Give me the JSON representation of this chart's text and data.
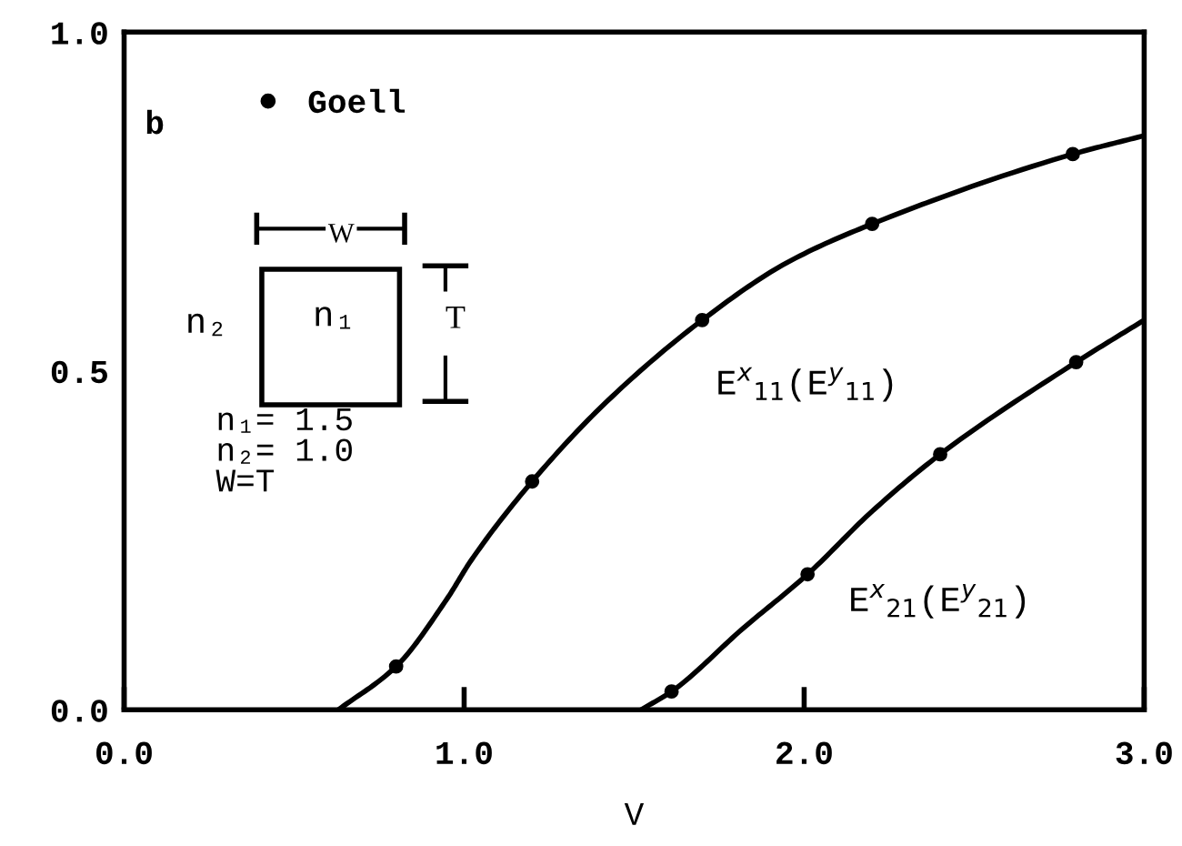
{
  "chart_data": {
    "type": "line",
    "xlabel": "V",
    "ylabel": "b",
    "xlim": [
      0,
      3.0
    ],
    "ylim": [
      0,
      1.0
    ],
    "xticks": [
      {
        "value": 0,
        "label": "0.0"
      },
      {
        "value": 1,
        "label": "1.0"
      },
      {
        "value": 2,
        "label": "2.0"
      },
      {
        "value": 3,
        "label": "3.0"
      }
    ],
    "yticks": [
      {
        "value": 0,
        "label": "0.0"
      },
      {
        "value": 0.5,
        "label": "0.5"
      },
      {
        "value": 1,
        "label": "1.0"
      }
    ],
    "series": [
      {
        "color": "#000000",
        "x": [
          0.63,
          0.8,
          0.95,
          1.02,
          1.2,
          1.42,
          1.7,
          1.95,
          2.2,
          2.79,
          2.99
        ],
        "values": [
          0,
          0.064,
          0.164,
          0.22,
          0.337,
          0.455,
          0.575,
          0.66,
          0.717,
          0.82,
          0.846
        ]
      },
      {
        "color": "#000000",
        "x": [
          1.52,
          1.61,
          1.82,
          2.01,
          2.2,
          2.4,
          2.8,
          2.99
        ],
        "values": [
          0,
          0.027,
          0.12,
          0.2,
          0.293,
          0.377,
          0.513,
          0.572
        ]
      },
      {
        "type": "scatter",
        "name": "Goell",
        "color": "#000000",
        "marker": "circle",
        "x": [
          0.8,
          1.2,
          1.7,
          2.2,
          2.79,
          1.61,
          2.01,
          2.4,
          2.8
        ],
        "values": [
          0.064,
          0.337,
          0.575,
          0.717,
          0.82,
          0.027,
          0.2,
          0.377,
          0.513
        ]
      }
    ],
    "legend": "top left",
    "grid": false,
    "marker": "none",
    "line_style": "solid",
    "annotations": [
      "E$^{x}$$_{11}$(E$^{y}$$_{11}$)",
      "E$^{x}$$_{21}$(E$^{y}$$_{21}$)",
      "n₂",
      "n₁",
      "W",
      "T",
      "n₁= 1.5\nn₂= 1.0\nW=T"
    ]
  }
}
